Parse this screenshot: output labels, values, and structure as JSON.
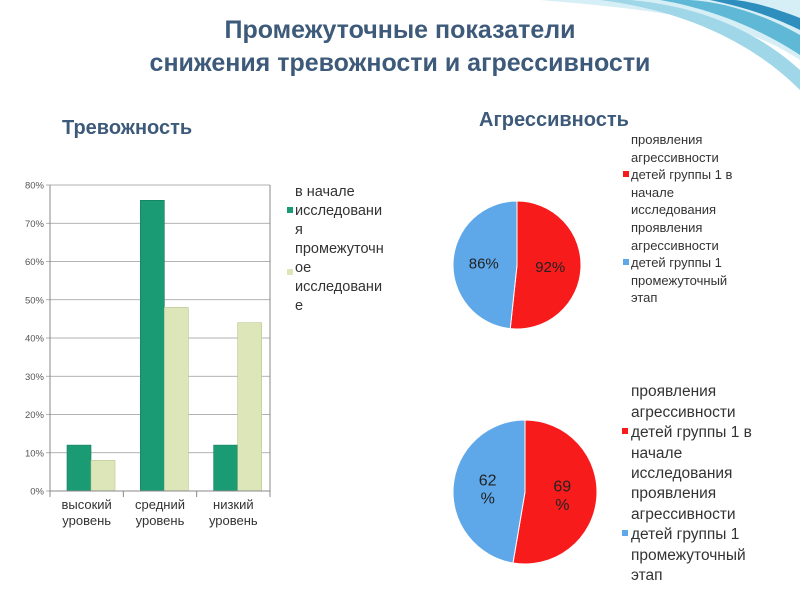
{
  "slide": {
    "title_line1": "Промежуточные показатели",
    "title_line2": "снижения тревожности и агрессивности",
    "section_left": "Тревожность",
    "section_right": "Агрессивность"
  },
  "colors": {
    "title": "#3d5a7a",
    "bar_start": "#1b9b74",
    "bar_mid": "#dde6b8",
    "pie_red": "#f81b1b",
    "pie_blue": "#5ea8ea"
  },
  "bar_legend": {
    "start_label": "в начале\nисследовани\nя",
    "mid_label": "промежуточн\nое\nисследовани\nе"
  },
  "pie_legends": [
    {
      "red_label": "проявления\nагрессивности\nдетей группы 1 в\nначале\nисследования",
      "blue_label": "проявления\nагрессивности\nдетей группы 1\nпромежуточный\nэтап"
    },
    {
      "red_label": "проявления\nагрессивности\nдетей группы 1 в\nначале\nисследования",
      "blue_label": "проявления\nагрессивности\nдетей группы 1\nпромежуточный\nэтап"
    }
  ],
  "chart_data": [
    {
      "type": "bar",
      "title": "Тревожность",
      "categories": [
        "высокий уровень",
        "средний уровень",
        "низкий уровень"
      ],
      "category_labels": [
        [
          "высокий",
          "уровень"
        ],
        [
          "средний",
          "уровень"
        ],
        [
          "низкий",
          "уровень"
        ]
      ],
      "series": [
        {
          "name": "в начале исследования",
          "values": [
            12,
            76,
            12
          ]
        },
        {
          "name": "промежуточное исследование",
          "values": [
            8,
            48,
            44
          ]
        }
      ],
      "y_ticks": [
        "0%",
        "10%",
        "20%",
        "30%",
        "40%",
        "50%",
        "60%",
        "70%",
        "80%"
      ],
      "ylim": [
        0,
        80
      ],
      "grid": true,
      "legend": "right"
    },
    {
      "type": "pie",
      "title": "Агрессивность",
      "slices": [
        {
          "label": "92%",
          "value": 92
        },
        {
          "label": "86%",
          "value": 86
        }
      ],
      "legend": "right"
    },
    {
      "type": "pie",
      "slices": [
        {
          "label": "69\n%",
          "value": 69
        },
        {
          "label": "62\n%",
          "value": 62
        }
      ],
      "legend": "right"
    }
  ]
}
